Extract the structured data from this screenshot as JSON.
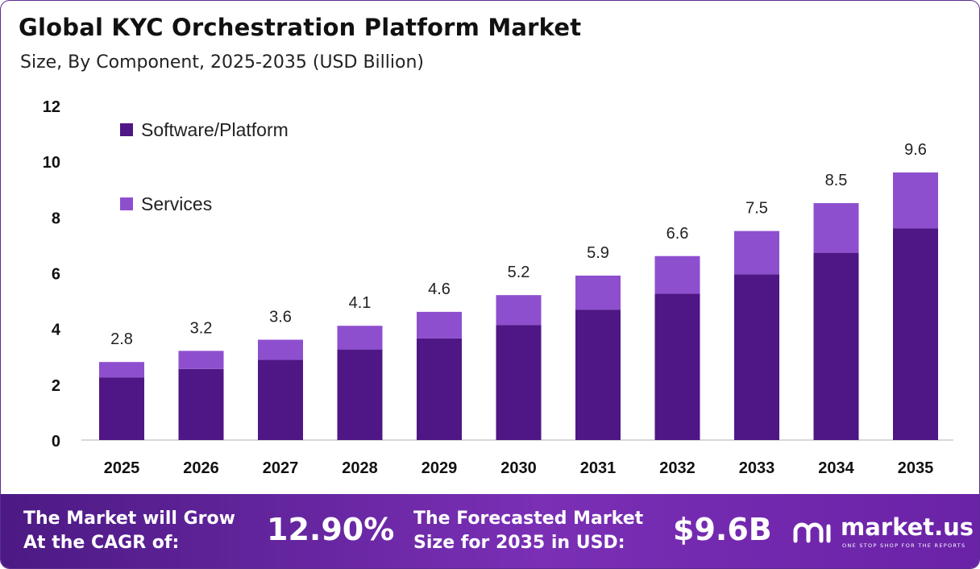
{
  "title": "Global KYC Orchestration Platform Market",
  "subtitle": "Size, By Component, 2025-2035 (USD Billion)",
  "colors": {
    "software": "#4f1685",
    "services": "#8e4fcf",
    "axis": "#cccccc",
    "footer_start": "#4c1a84",
    "footer_end": "#7a2fb5"
  },
  "chart_data": {
    "type": "bar",
    "stacked": true,
    "categories": [
      "2025",
      "2026",
      "2027",
      "2028",
      "2029",
      "2030",
      "2031",
      "2032",
      "2033",
      "2034",
      "2035"
    ],
    "series": [
      {
        "name": "Software/Platform",
        "values": [
          2.25,
          2.55,
          2.88,
          3.25,
          3.65,
          4.13,
          4.68,
          5.25,
          5.95,
          6.72,
          7.6
        ]
      },
      {
        "name": "Services",
        "values": [
          0.55,
          0.65,
          0.72,
          0.85,
          0.95,
          1.07,
          1.22,
          1.35,
          1.55,
          1.78,
          2.0
        ]
      }
    ],
    "totals": [
      "2.8",
      "3.2",
      "3.6",
      "4.1",
      "4.6",
      "5.2",
      "5.9",
      "6.6",
      "7.5",
      "8.5",
      "9.6"
    ],
    "yticks": [
      "0",
      "2",
      "4",
      "6",
      "8",
      "10",
      "12"
    ],
    "ylim": [
      0,
      12
    ],
    "grid": false,
    "legend_position": "top-left"
  },
  "footer": {
    "cagr_label": "The Market will Grow\nAt the CAGR of:",
    "cagr_value": "12.90%",
    "forecast_label": "The Forecasted Market\nSize for 2035 in USD:",
    "forecast_value": "$9.6B",
    "brand_name": "market.us",
    "brand_tagline": "ONE STOP SHOP FOR THE REPORTS",
    "brand_icon": "market-us-logo-icon"
  }
}
